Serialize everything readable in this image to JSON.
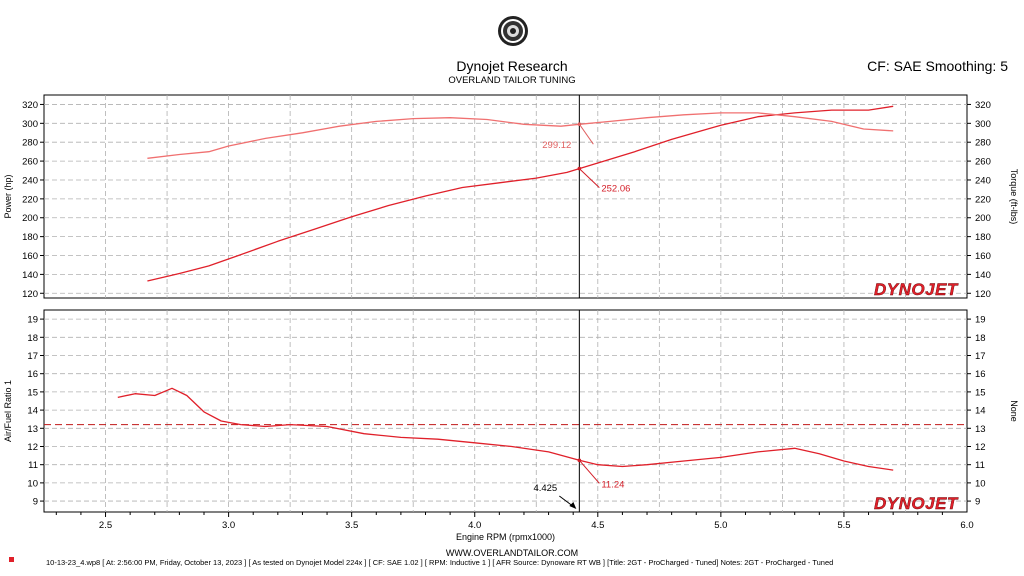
{
  "header": {
    "title": "Dynojet Research",
    "subtitle": "OVERLAND TAILOR TUNING",
    "settings": "CF: SAE Smoothing: 5"
  },
  "logo_text": "DYNOJET",
  "footer": {
    "url": "WWW.OVERLANDTAILOR.COM",
    "run_info": "10-13-23_4.wp8  [ At:  2:56:00 PM, Friday, October 13, 2023 ]  [ As tested on Dynojet Model 224x ]  [ CF: SAE 1.02 ]  [ RPM: Inductive 1 ]  [ AFR Source:  Dynoware RT WB ]  [Title:  2GT - ProCharged - Tuned]   Notes:  2GT - ProCharged - Tuned"
  },
  "colors": {
    "curve": "#e0202a",
    "curve_light": "#f07070",
    "cursor": "#000000",
    "grid": "#b0b0b0"
  },
  "chart_data": [
    {
      "type": "line",
      "panel": "power-torque",
      "xlabel": "",
      "ylabel_left": "Power (hp)",
      "ylabel_right": "Torque (ft-lbs)",
      "xlim": [
        2.25,
        6.0
      ],
      "ylim": [
        115,
        330
      ],
      "yticks": [
        120,
        140,
        160,
        180,
        200,
        220,
        240,
        260,
        280,
        300,
        320
      ],
      "grid": true,
      "series": [
        {
          "role": "power",
          "x": [
            2.67,
            2.8,
            2.92,
            3.05,
            3.2,
            3.35,
            3.5,
            3.65,
            3.8,
            3.95,
            4.1,
            4.25,
            4.375,
            4.425,
            4.5,
            4.65,
            4.8,
            5.0,
            5.15,
            5.3,
            5.45,
            5.6,
            5.7
          ],
          "values": [
            133,
            141,
            149,
            161,
            175,
            188,
            201,
            213,
            223,
            232,
            237,
            242,
            248,
            252,
            258,
            270,
            283,
            298,
            307,
            311,
            314,
            314,
            318
          ]
        },
        {
          "role": "torque",
          "x": [
            2.67,
            2.8,
            2.92,
            3.0,
            3.15,
            3.3,
            3.45,
            3.6,
            3.75,
            3.9,
            4.05,
            4.2,
            4.35,
            4.425,
            4.55,
            4.7,
            4.85,
            5.0,
            5.15,
            5.3,
            5.45,
            5.58,
            5.7
          ],
          "values": [
            263,
            267,
            270,
            276,
            284,
            290,
            297,
            302,
            305,
            306,
            304,
            299,
            297,
            299,
            302,
            306,
            309,
            311,
            311,
            307,
            302,
            294,
            292
          ]
        }
      ],
      "annotations": [
        {
          "label": "299.12",
          "x": 4.425,
          "y": 299.12
        },
        {
          "label": "252.06",
          "x": 4.425,
          "y": 252.06
        }
      ]
    },
    {
      "type": "line",
      "panel": "afr",
      "xlabel": "Engine RPM (rpmx1000)",
      "ylabel_left": "Air/Fuel Ratio 1",
      "ylabel_right": "None",
      "xlim": [
        2.25,
        6.0
      ],
      "ylim": [
        8.4,
        19.5
      ],
      "yticks": [
        9,
        10,
        11,
        12,
        13,
        14,
        15,
        16,
        17,
        18,
        19
      ],
      "xticks": [
        2.5,
        3.0,
        3.5,
        4.0,
        4.5,
        5.0,
        5.5,
        6.0
      ],
      "xtick_labels": [
        "2.5",
        "3.0",
        "3.5",
        "4.0",
        "4.5",
        "5.0",
        "5.5",
        "6.0"
      ],
      "grid": true,
      "reference_line": 13.2,
      "series": [
        {
          "role": "afr",
          "x": [
            2.55,
            2.62,
            2.7,
            2.77,
            2.83,
            2.9,
            2.97,
            3.05,
            3.15,
            3.25,
            3.4,
            3.55,
            3.7,
            3.85,
            4.0,
            4.15,
            4.3,
            4.425,
            4.5,
            4.6,
            4.7,
            4.85,
            5.0,
            5.15,
            5.3,
            5.4,
            5.5,
            5.6,
            5.7
          ],
          "values": [
            14.7,
            14.9,
            14.8,
            15.2,
            14.8,
            13.9,
            13.4,
            13.2,
            13.1,
            13.2,
            13.1,
            12.7,
            12.5,
            12.4,
            12.2,
            12.0,
            11.7,
            11.24,
            11.0,
            10.9,
            11.0,
            11.2,
            11.4,
            11.7,
            11.9,
            11.6,
            11.2,
            10.9,
            10.7
          ]
        }
      ],
      "annotations": [
        {
          "label": "11.24",
          "x": 4.425,
          "y": 11.24
        }
      ]
    }
  ],
  "cursor": {
    "x": 4.425,
    "label": "4.425"
  }
}
